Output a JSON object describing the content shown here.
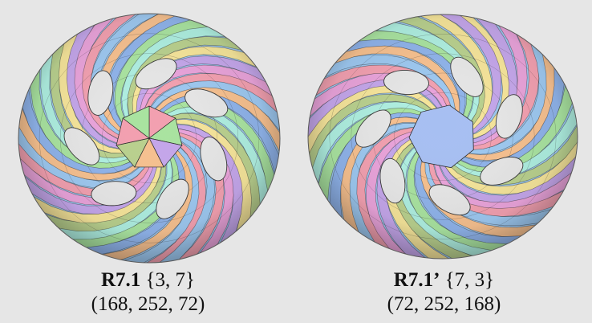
{
  "figures": [
    {
      "name": "R7.1",
      "symbol": "{3, 7}",
      "counts": "(168, 252, 72)",
      "holes": 7,
      "center_polygon": "triangulated-star"
    },
    {
      "name": "R7.1’",
      "symbol": "{7, 3}",
      "counts": "(72, 252, 168)",
      "holes": 7,
      "center_polygon": "heptagon"
    }
  ],
  "palette": [
    "#f2a0b0",
    "#f5e49a",
    "#a9e3a0",
    "#9dc8f0",
    "#c4a6ea",
    "#aeeee0",
    "#f6c08f",
    "#e9a3da",
    "#b9d08e",
    "#8fb3ea"
  ],
  "background": "#e6e6e6"
}
